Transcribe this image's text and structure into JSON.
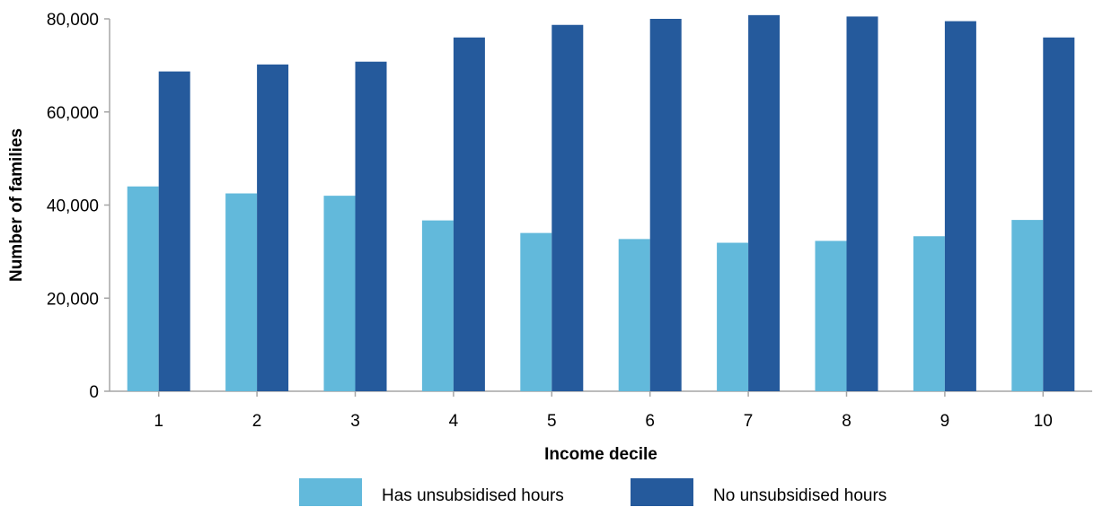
{
  "chart_data": {
    "type": "bar",
    "title": "",
    "xlabel": "Income decile",
    "ylabel": "Number of families",
    "categories": [
      "1",
      "2",
      "3",
      "4",
      "5",
      "6",
      "7",
      "8",
      "9",
      "10"
    ],
    "ylim": [
      0,
      80000
    ],
    "yticks": [
      0,
      20000,
      40000,
      60000,
      80000
    ],
    "ytick_labels": [
      "0",
      "20,000",
      "40,000",
      "60,000",
      "80,000"
    ],
    "grid": false,
    "legend_position": "bottom",
    "series": [
      {
        "name": "Has unsubsidised hours",
        "color": "#62b9db",
        "values": [
          44000,
          42500,
          42000,
          36700,
          34000,
          32700,
          31900,
          32300,
          33300,
          36800
        ]
      },
      {
        "name": "No unsubsidised hours",
        "color": "#255a9c",
        "values": [
          68700,
          70200,
          70800,
          76000,
          78700,
          80000,
          80800,
          80500,
          79500,
          76000
        ]
      }
    ]
  }
}
